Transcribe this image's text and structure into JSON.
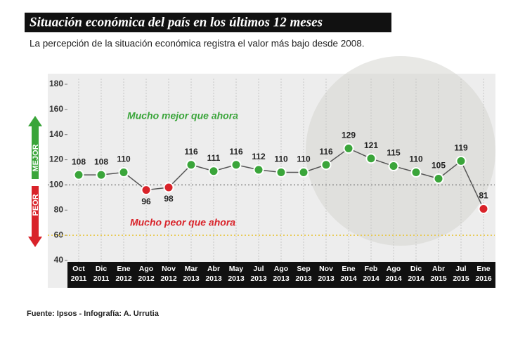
{
  "chart_data": {
    "type": "line",
    "title": "Situación económica del país en los últimos 12 meses",
    "subtitle": "La percepción de la situación económica registra el valor más bajo desde 2008.",
    "categories": [
      "Oct 2011",
      "Dic 2011",
      "Ene 2012",
      "Ago 2012",
      "Nov 2012",
      "Mar 2013",
      "Abr 2013",
      "May 2013",
      "Jul 2013",
      "Ago 2013",
      "Sep 2013",
      "Nov 2013",
      "Ene 2014",
      "Feb 2014",
      "Ago 2014",
      "Dic 2014",
      "Abr 2015",
      "Jul 2015",
      "Ene 2016"
    ],
    "values": [
      108,
      108,
      110,
      96,
      98,
      116,
      111,
      116,
      112,
      110,
      110,
      116,
      129,
      121,
      115,
      110,
      105,
      119,
      81
    ],
    "ylim": [
      40,
      180
    ],
    "yticks": [
      40,
      60,
      80,
      100,
      120,
      140,
      160,
      180
    ],
    "line_color": "#555555",
    "above_color": "#3aa53a",
    "below_color": "#d9232a",
    "threshold": 100,
    "reference_lines": [
      {
        "value": 100,
        "color": "#888888"
      },
      {
        "value": 60,
        "color": "#e8c640"
      }
    ],
    "annotations": {
      "better": "Mucho mejor que ahora",
      "worse": "Mucho peor que ahora",
      "up": "MEJOR",
      "down": "PEOR"
    },
    "source": "Fuente: Ipsos - Infografía: A. Urrutia"
  }
}
